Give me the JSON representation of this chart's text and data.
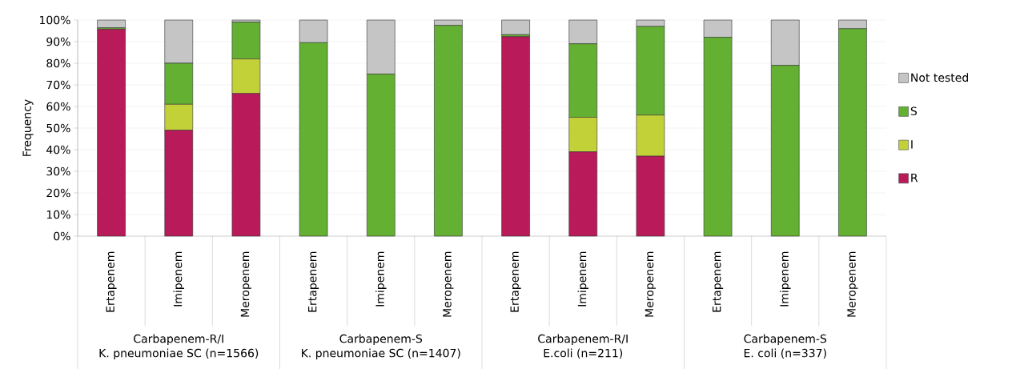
{
  "chart_data": {
    "type": "bar",
    "stacked": true,
    "ylabel": "Frequency",
    "categories": [
      "Ertapenem",
      "Imipenem",
      "Meropenem",
      "Ertapenem",
      "Imipenem",
      "Meropenem",
      "Ertapenem",
      "Imipenem",
      "Meropenem",
      "Ertapenem",
      "Imipenem",
      "Meropenem"
    ],
    "series": [
      {
        "name": "R",
        "color": "#b91b5a",
        "values": [
          95.7,
          49,
          66,
          0,
          0,
          0,
          92.3,
          39,
          37,
          0,
          0,
          0
        ]
      },
      {
        "name": "I",
        "color": "#c3d139",
        "values": [
          0,
          12,
          16,
          0,
          0,
          0,
          0,
          16,
          19,
          0,
          0,
          0
        ]
      },
      {
        "name": "S",
        "color": "#63b032",
        "values": [
          0.7,
          19,
          17,
          89.5,
          75,
          97.5,
          0.9,
          34,
          41,
          92,
          79,
          96
        ]
      },
      {
        "name": "Not tested",
        "color": "#c5c5c5",
        "values": [
          3.6,
          20,
          1,
          10.5,
          25,
          2.5,
          6.8,
          11,
          3,
          8,
          21,
          4
        ]
      }
    ],
    "ylim": [
      0,
      100
    ],
    "yticks": [
      {
        "value": 0,
        "label": "0%"
      },
      {
        "value": 10,
        "label": "10%"
      },
      {
        "value": 20,
        "label": "20%"
      },
      {
        "value": 30,
        "label": "30%"
      },
      {
        "value": 40,
        "label": "40%"
      },
      {
        "value": 50,
        "label": "50%"
      },
      {
        "value": 60,
        "label": "60%"
      },
      {
        "value": 70,
        "label": "70%"
      },
      {
        "value": 80,
        "label": "80%"
      },
      {
        "value": 90,
        "label": "90%"
      },
      {
        "value": 100,
        "label": "100%"
      }
    ],
    "grid": "y",
    "legend": "right",
    "annotations": [
      "Carbapenem-R/I",
      "K. pneumoniae SC (n=1566)",
      "Carbapenem-S",
      "K. pneumoniae SC (n=1407)",
      "Carbapenem-R/I",
      "E.coli (n=211)",
      "Carbapenem-S",
      "E. coli (n=337)"
    ]
  }
}
